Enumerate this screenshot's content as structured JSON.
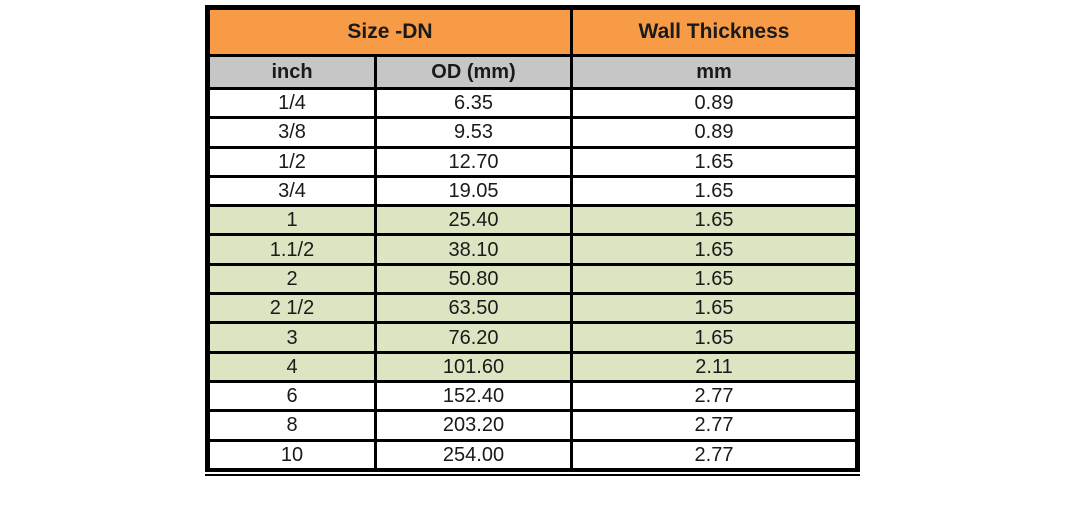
{
  "table": {
    "header_groups": {
      "size_dn": "Size -DN",
      "wall_thickness": "Wall Thickness"
    },
    "columns": {
      "inch": "inch",
      "od": "OD (mm)",
      "wall": "mm"
    },
    "rows": [
      {
        "inch": "1/4",
        "od": "6.35",
        "wall": "0.89",
        "highlighted": false
      },
      {
        "inch": "3/8",
        "od": "9.53",
        "wall": "0.89",
        "highlighted": false
      },
      {
        "inch": "1/2",
        "od": "12.70",
        "wall": "1.65",
        "highlighted": false
      },
      {
        "inch": "3/4",
        "od": "19.05",
        "wall": "1.65",
        "highlighted": false
      },
      {
        "inch": "1",
        "od": "25.40",
        "wall": "1.65",
        "highlighted": true
      },
      {
        "inch": "1.1/2",
        "od": "38.10",
        "wall": "1.65",
        "highlighted": true
      },
      {
        "inch": "2",
        "od": "50.80",
        "wall": "1.65",
        "highlighted": true
      },
      {
        "inch": "2 1/2",
        "od": "63.50",
        "wall": "1.65",
        "highlighted": true
      },
      {
        "inch": "3",
        "od": "76.20",
        "wall": "1.65",
        "highlighted": true
      },
      {
        "inch": "4",
        "od": "101.60",
        "wall": "2.11",
        "highlighted": true
      },
      {
        "inch": "6",
        "od": "152.40",
        "wall": "2.77",
        "highlighted": false
      },
      {
        "inch": "8",
        "od": "203.20",
        "wall": "2.77",
        "highlighted": false
      },
      {
        "inch": "10",
        "od": "254.00",
        "wall": "2.77",
        "highlighted": false
      }
    ],
    "colors": {
      "header_orange": "#F79B47",
      "subheader_gray": "#C6C6C6",
      "row_green": "#DCE5C2",
      "border_black": "#000000",
      "background_white": "#FFFFFF"
    }
  },
  "chart_data": {
    "type": "table",
    "title": "",
    "column_groups": [
      "Size -DN",
      "Size -DN",
      "Wall Thickness"
    ],
    "columns": [
      "inch",
      "OD (mm)",
      "mm"
    ],
    "rows": [
      [
        "1/4",
        6.35,
        0.89
      ],
      [
        "3/8",
        9.53,
        0.89
      ],
      [
        "1/2",
        12.7,
        1.65
      ],
      [
        "3/4",
        19.05,
        1.65
      ],
      [
        "1",
        25.4,
        1.65
      ],
      [
        "1.1/2",
        38.1,
        1.65
      ],
      [
        "2",
        50.8,
        1.65
      ],
      [
        "2 1/2",
        63.5,
        1.65
      ],
      [
        "3",
        76.2,
        1.65
      ],
      [
        "4",
        101.6,
        2.11
      ],
      [
        "6",
        152.4,
        2.77
      ],
      [
        "8",
        203.2,
        2.77
      ],
      [
        "10",
        254.0,
        2.77
      ]
    ]
  }
}
